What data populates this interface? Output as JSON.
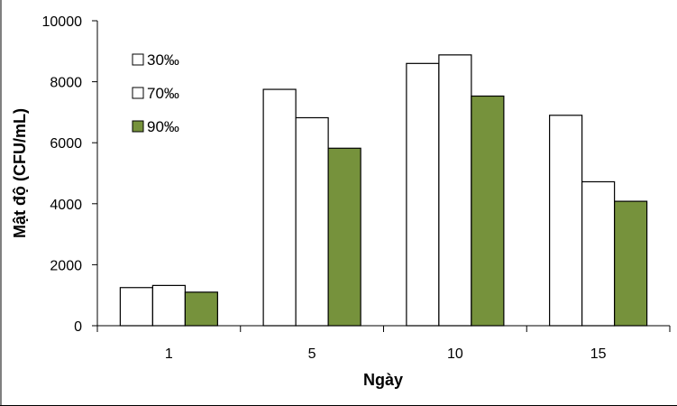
{
  "chart_data": {
    "type": "bar",
    "title": "",
    "xlabel": "Ngày",
    "ylabel": "Mật độ (CFU/mL)",
    "categories": [
      "1",
      "5",
      "10",
      "15"
    ],
    "ylim": [
      0,
      10000
    ],
    "yticks": [
      0,
      2000,
      4000,
      6000,
      8000,
      10000
    ],
    "grid": false,
    "legend_position": "top-left",
    "series": [
      {
        "name": "30‰",
        "color": "#ffffff",
        "values": [
          1250,
          7750,
          8600,
          6900
        ]
      },
      {
        "name": "70‰",
        "color": "#ffffff",
        "values": [
          1320,
          6820,
          8880,
          4720
        ]
      },
      {
        "name": "90‰",
        "color": "#76923c",
        "values": [
          1100,
          5820,
          7530,
          4080
        ]
      }
    ]
  }
}
